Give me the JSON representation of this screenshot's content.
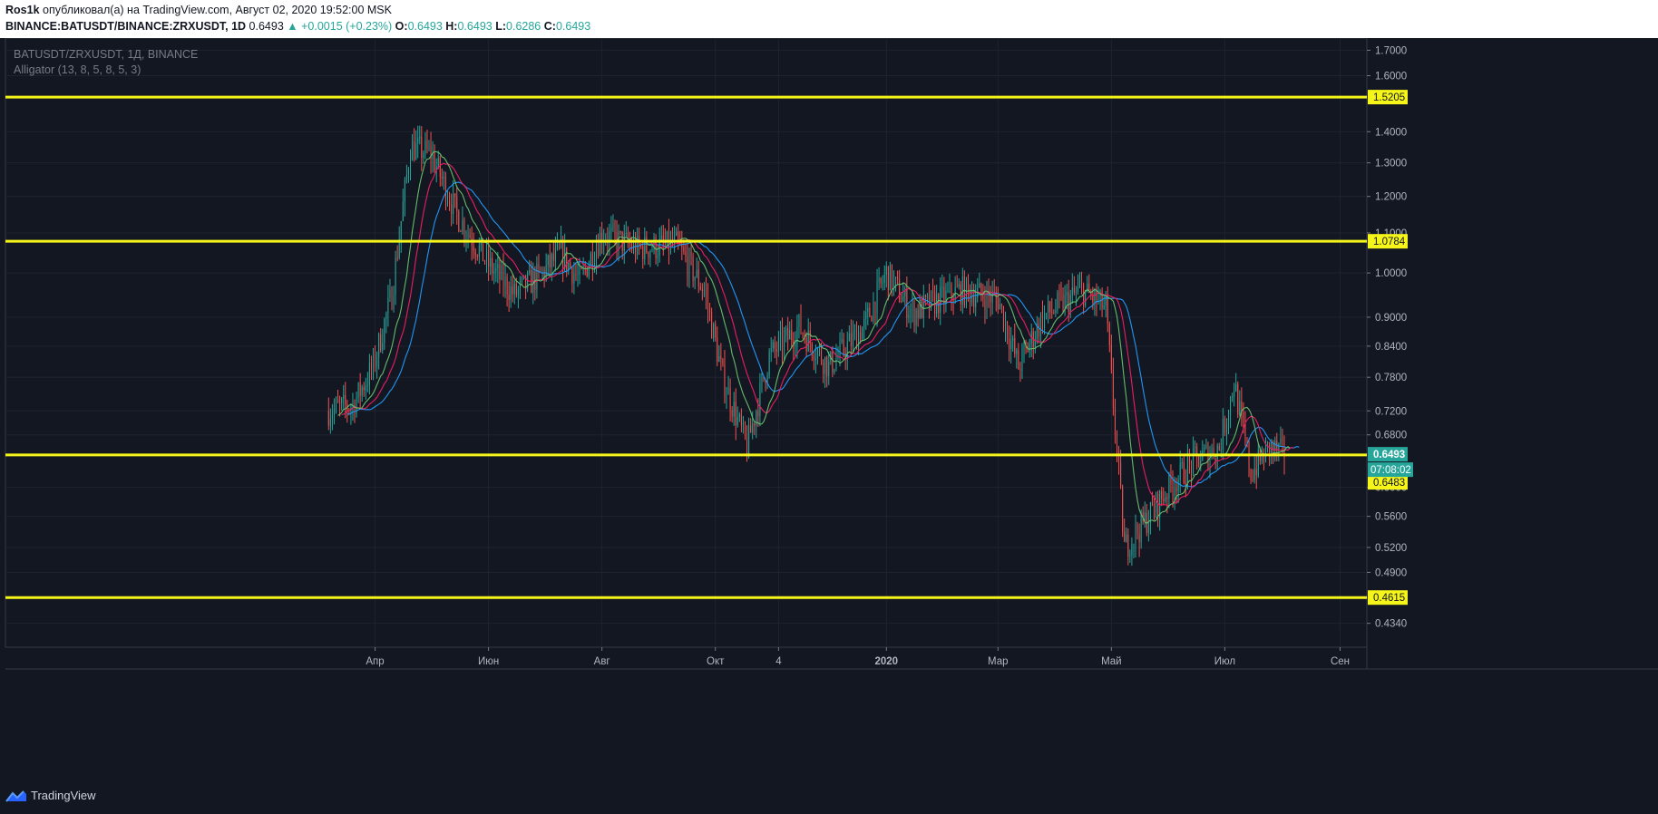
{
  "header": {
    "author": "Ros1k",
    "published_text": "опубликовал(а) на TradingView.com, Август 02, 2020 19:52:00 MSK",
    "symbol": "BINANCE:BATUSDT/BINANCE:ZRXUSDT",
    "interval": "1D",
    "last": "0.6493",
    "change": "▲ +0.0015 (+0.23%)",
    "o_label": "O:",
    "o": "0.6493",
    "h_label": "H:",
    "h": "0.6493",
    "l_label": "L:",
    "l": "0.6286",
    "c_label": "C:",
    "c": "0.6493"
  },
  "legend": {
    "title": "BATUSDT/ZRXUSDT, 1Д, BINANCE",
    "indicator": "Alligator (13, 8, 5, 8, 5, 3)"
  },
  "footer": {
    "brand": "TradingView"
  },
  "colors": {
    "background": "#131722",
    "up": "#26a69a",
    "down": "#ef5350",
    "level_line": "#f5f51a",
    "jaw": "#2196f3",
    "teeth": "#e91e63",
    "lips": "#66bb6a",
    "price_badge": "#26a69a"
  },
  "chart_data": {
    "type": "candlestick",
    "scale": "log",
    "ylim": [
      0.41,
      1.75
    ],
    "y_ticks": [
      "0.4340",
      "0.4900",
      "0.5200",
      "0.5600",
      "0.6000",
      "0.6800",
      "0.7200",
      "0.7800",
      "0.8400",
      "0.9000",
      "1.0000",
      "1.1000",
      "1.2000",
      "1.3000",
      "1.4000",
      "1.6000",
      "1.7000"
    ],
    "x_ticks": [
      {
        "label": "Апр",
        "date": "2019-04-01"
      },
      {
        "label": "Июн",
        "date": "2019-06-01"
      },
      {
        "label": "Авг",
        "date": "2019-08-01"
      },
      {
        "label": "Окт",
        "date": "2019-10-01"
      },
      {
        "label": "4",
        "date": "2019-11-04"
      },
      {
        "label": "2020",
        "date": "2020-01-01"
      },
      {
        "label": "Мар",
        "date": "2020-03-01"
      },
      {
        "label": "Май",
        "date": "2020-05-01"
      },
      {
        "label": "Июл",
        "date": "2020-07-01"
      },
      {
        "label": "Сен",
        "date": "2020-09-01"
      }
    ],
    "horizontal_levels": [
      {
        "value": 1.5205,
        "label": "1.5205"
      },
      {
        "value": 1.0784,
        "label": "1.0784"
      },
      {
        "value": 0.6483,
        "label": "0.6483"
      },
      {
        "value": 0.4615,
        "label": "0.4615"
      }
    ],
    "last_price": {
      "value": 0.6493,
      "label": "0.6493",
      "countdown": "07:08:02"
    },
    "price_path": [
      [
        "2019-03-07",
        0.72
      ],
      [
        "2019-03-20",
        0.73
      ],
      [
        "2019-03-31",
        0.8
      ],
      [
        "2019-04-10",
        0.95
      ],
      [
        "2019-04-20",
        1.35
      ],
      [
        "2019-05-01",
        1.33
      ],
      [
        "2019-05-15",
        1.15
      ],
      [
        "2019-06-01",
        1.02
      ],
      [
        "2019-06-15",
        0.95
      ],
      [
        "2019-06-30",
        1.0
      ],
      [
        "2019-07-10",
        1.05
      ],
      [
        "2019-07-20",
        0.98
      ],
      [
        "2019-08-01",
        1.1
      ],
      [
        "2019-08-20",
        1.06
      ],
      [
        "2019-09-10",
        1.07
      ],
      [
        "2019-09-25",
        0.96
      ],
      [
        "2019-10-05",
        0.78
      ],
      [
        "2019-10-18",
        0.66
      ],
      [
        "2019-10-30",
        0.82
      ],
      [
        "2019-11-15",
        0.88
      ],
      [
        "2019-12-01",
        0.8
      ],
      [
        "2019-12-20",
        0.88
      ],
      [
        "2020-01-01",
        1.0
      ],
      [
        "2020-01-15",
        0.91
      ],
      [
        "2020-02-10",
        0.96
      ],
      [
        "2020-03-01",
        0.94
      ],
      [
        "2020-03-12",
        0.8
      ],
      [
        "2020-03-25",
        0.9
      ],
      [
        "2020-04-15",
        0.96
      ],
      [
        "2020-04-28",
        0.92
      ],
      [
        "2020-05-08",
        0.52
      ],
      [
        "2020-05-18",
        0.55
      ],
      [
        "2020-06-01",
        0.6
      ],
      [
        "2020-06-15",
        0.64
      ],
      [
        "2020-06-28",
        0.66
      ],
      [
        "2020-07-06",
        0.77
      ],
      [
        "2020-07-15",
        0.62
      ],
      [
        "2020-07-25",
        0.66
      ],
      [
        "2020-08-02",
        0.6493
      ]
    ]
  }
}
